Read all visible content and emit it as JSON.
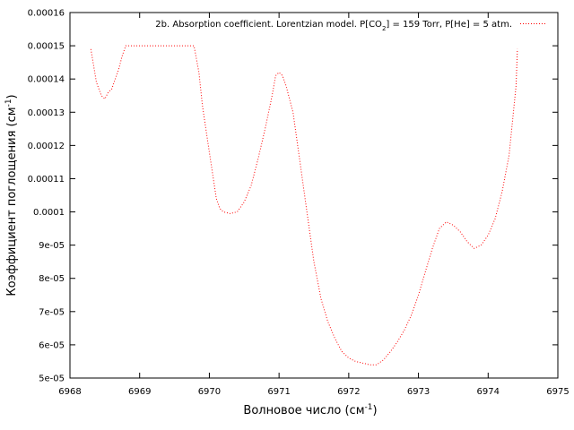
{
  "chart_data": {
    "type": "line",
    "title": "",
    "xlabel": "Волновое число (см",
    "xlabel_sup": "-1",
    "xlabel_end": ")",
    "ylabel": "Коэффициент поглощения (см",
    "ylabel_sup": "-1",
    "ylabel_end": ")",
    "xlim": [
      6968,
      6975
    ],
    "ylim": [
      5e-05,
      0.00016
    ],
    "grid": false,
    "legend_position": "top-right",
    "xticks": [
      6968,
      6969,
      6970,
      6971,
      6972,
      6973,
      6974,
      6975
    ],
    "xtick_labels": [
      "6968",
      "6969",
      "6970",
      "6971",
      "6972",
      "6973",
      "6974",
      "6975"
    ],
    "yticks": [
      5e-05,
      6e-05,
      7e-05,
      8e-05,
      9e-05,
      0.0001,
      0.00011,
      0.00012,
      0.00013,
      0.00014,
      0.00015,
      0.00016
    ],
    "ytick_labels": [
      "5e-05",
      "6e-05",
      "7e-05",
      "8e-05",
      "9e-05",
      "0.0001",
      "0.00011",
      "0.00012",
      "0.00013",
      "0.00014",
      "0.00015",
      "0.00016"
    ],
    "series": [
      {
        "name": "2b. Absorption coefficient. Lorentzian model. P[CO",
        "name_sub": "2",
        "name_end": "] = 159 Torr, P[He] = 5 atm.",
        "color": "#ff0000",
        "x": [
          6968.3,
          6968.38,
          6968.45,
          6968.5,
          6968.55,
          6968.6,
          6968.65,
          6968.7,
          6968.75,
          6968.8,
          6969.0,
          6969.3,
          6969.6,
          6969.78,
          6969.85,
          6969.9,
          6970.0,
          6970.05,
          6970.1,
          6970.15,
          6970.2,
          6970.3,
          6970.4,
          6970.5,
          6970.6,
          6970.7,
          6970.8,
          6970.9,
          6970.95,
          6971.0,
          6971.05,
          6971.1,
          6971.2,
          6971.3,
          6971.4,
          6971.5,
          6971.6,
          6971.7,
          6971.8,
          6971.9,
          6972.0,
          6972.1,
          6972.2,
          6972.3,
          6972.4,
          6972.5,
          6972.6,
          6972.7,
          6972.8,
          6972.9,
          6973.0,
          6973.1,
          6973.2,
          6973.3,
          6973.4,
          6973.5,
          6973.6,
          6973.7,
          6973.8,
          6973.9,
          6974.0,
          6974.1,
          6974.2,
          6974.3,
          6974.4,
          6974.42
        ],
        "values": [
          0.000149,
          0.000139,
          0.000135,
          0.000134,
          0.000136,
          0.000137,
          0.00014,
          0.000143,
          0.000147,
          0.00015,
          0.00015,
          0.00015,
          0.00015,
          0.00015,
          0.000142,
          0.000132,
          0.000118,
          0.000111,
          0.000104,
          0.000101,
          0.0001,
          9.95e-05,
          0.0001,
          0.000103,
          0.000108,
          0.000116,
          0.000125,
          0.000135,
          0.000141,
          0.000142,
          0.000141,
          0.000138,
          0.00013,
          0.000115,
          0.0001,
          8.5e-05,
          7.4e-05,
          6.7e-05,
          6.2e-05,
          5.8e-05,
          5.6e-05,
          5.5e-05,
          5.45e-05,
          5.4e-05,
          5.4e-05,
          5.55e-05,
          5.8e-05,
          6.1e-05,
          6.45e-05,
          6.9e-05,
          7.5e-05,
          8.2e-05,
          8.9e-05,
          9.5e-05,
          9.7e-05,
          9.6e-05,
          9.4e-05,
          9.1e-05,
          8.9e-05,
          9e-05,
          9.3e-05,
          9.8e-05,
          0.000106,
          0.000117,
          0.000138,
          0.000149
        ]
      }
    ]
  }
}
